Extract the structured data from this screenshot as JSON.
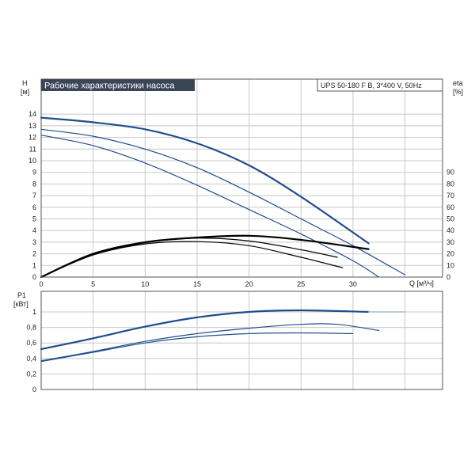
{
  "chart_data": [
    {
      "type": "line",
      "title": "Рабочие характеристики насоса",
      "model_label": "UPS 50-180 F B, 3*400 V, 50Hz",
      "xlabel": "Q [м³/ч]",
      "ylabel_name": "H",
      "ylabel_unit": "[м]",
      "y2label_name": "eta",
      "y2label_unit": "[%]",
      "xlim": [
        0,
        38.5
      ],
      "ylim": [
        0,
        14.9
      ],
      "y2lim": [
        0,
        100
      ],
      "x_ticks": [
        0,
        5,
        10,
        15,
        20,
        25,
        30,
        35
      ],
      "x_tick_labels": [
        "0",
        "5",
        "10",
        "15",
        "20",
        "25",
        "30"
      ],
      "y_ticks": [
        0,
        1,
        2,
        3,
        4,
        5,
        6,
        7,
        8,
        9,
        10,
        11,
        12,
        13,
        14
      ],
      "y2_ticks": [
        0,
        10,
        20,
        30,
        40,
        50,
        60,
        70,
        80,
        90
      ],
      "grid": true,
      "head_series": [
        {
          "color": "#1f4e8c",
          "width": 2.2,
          "x": [
            0,
            5,
            10,
            15,
            20,
            25,
            31.5
          ],
          "values": [
            13.7,
            13.3,
            12.7,
            11.5,
            9.6,
            6.9,
            2.9
          ]
        },
        {
          "color": "#1f4e8c",
          "width": 1.2,
          "x": [
            0,
            5,
            10,
            15,
            20,
            25,
            30,
            35
          ],
          "values": [
            12.7,
            12.1,
            11.0,
            9.4,
            7.3,
            5.0,
            2.7,
            0.2
          ]
        },
        {
          "color": "#1f4e8c",
          "width": 1.2,
          "x": [
            0,
            5,
            10,
            15,
            20,
            25,
            30,
            32.5
          ],
          "values": [
            12.2,
            11.3,
            9.8,
            7.9,
            5.8,
            3.7,
            1.4,
            0.0
          ]
        }
      ],
      "eta_series": [
        {
          "color": "#000000",
          "width": 2.2,
          "x": [
            0,
            5,
            10,
            15,
            20,
            25,
            31.5
          ],
          "values": [
            0,
            20,
            30,
            34,
            35.5,
            32,
            24
          ]
        },
        {
          "color": "#000000",
          "width": 1.2,
          "x": [
            0,
            5,
            10,
            15,
            20,
            25,
            28.5
          ],
          "values": [
            0,
            19.5,
            29.5,
            33.5,
            31,
            23.5,
            17
          ]
        },
        {
          "color": "#000000",
          "width": 1.2,
          "x": [
            0,
            5,
            10,
            15,
            20,
            25,
            29
          ],
          "values": [
            0,
            19,
            28.5,
            30.5,
            27,
            17,
            8
          ]
        }
      ]
    },
    {
      "type": "line",
      "ylabel_name": "P1",
      "ylabel_unit": "[кВт]",
      "xlim": [
        0,
        38.5
      ],
      "ylim": [
        0,
        1.05
      ],
      "x_ticks": [
        0,
        5,
        10,
        15,
        20,
        25,
        30,
        35
      ],
      "y_ticks": [
        0,
        0.2,
        0.4,
        0.6,
        0.8,
        1
      ],
      "y_tick_labels": [
        "0",
        "0,2",
        "0,4",
        "0,6",
        "0,8",
        "1"
      ],
      "grid": true,
      "series": [
        {
          "color": "#1f4e8c",
          "width": 2.2,
          "x": [
            0,
            5,
            10,
            15,
            20,
            25,
            31.5
          ],
          "values": [
            0.52,
            0.66,
            0.81,
            0.93,
            1.0,
            1.02,
            1.0
          ]
        },
        {
          "color": "#a8b8cc",
          "width": 1.5,
          "x": [
            31.5,
            35
          ],
          "values": [
            1.0,
            1.0
          ]
        },
        {
          "color": "#1f4e8c",
          "width": 1.2,
          "x": [
            0,
            5,
            10,
            15,
            20,
            25,
            28.5,
            32.5
          ],
          "values": [
            0.37,
            0.49,
            0.62,
            0.72,
            0.79,
            0.84,
            0.84,
            0.76
          ]
        },
        {
          "color": "#1f4e8c",
          "width": 1.2,
          "x": [
            0,
            5,
            10,
            15,
            20,
            25,
            30
          ],
          "values": [
            0.36,
            0.48,
            0.6,
            0.68,
            0.72,
            0.73,
            0.72
          ]
        }
      ]
    }
  ]
}
